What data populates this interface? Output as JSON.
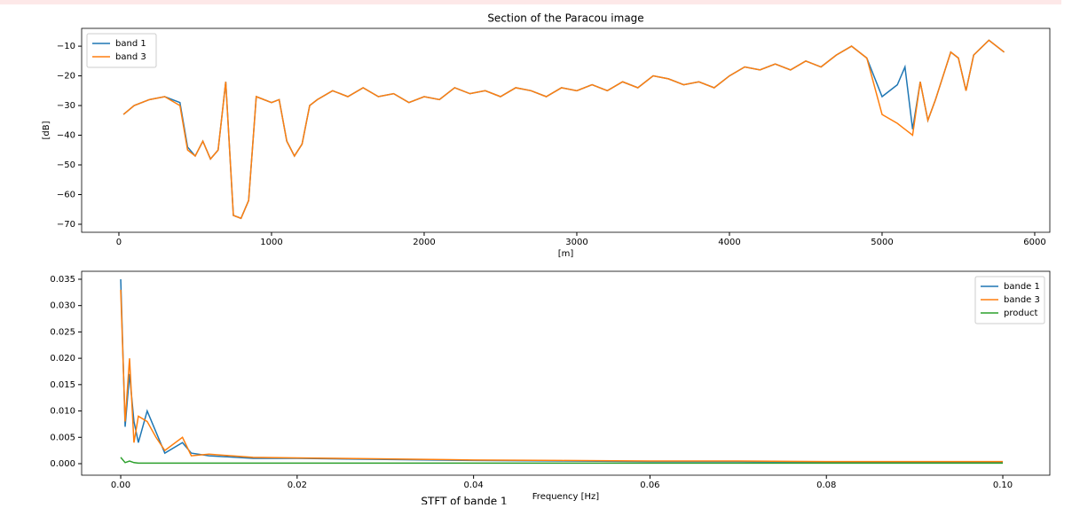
{
  "chart_data": [
    {
      "type": "line",
      "title": "Section of the Paracou image",
      "xlabel": "[m]",
      "ylabel": "[dB]",
      "x": [
        30,
        100,
        200,
        300,
        400,
        450,
        500,
        550,
        600,
        650,
        700,
        750,
        800,
        850,
        900,
        1000,
        1050,
        1100,
        1150,
        1200,
        1250,
        1300,
        1400,
        1500,
        1600,
        1700,
        1800,
        1900,
        2000,
        2100,
        2200,
        2300,
        2400,
        2500,
        2600,
        2700,
        2800,
        2900,
        3000,
        3100,
        3200,
        3300,
        3400,
        3500,
        3600,
        3700,
        3800,
        3900,
        4000,
        4100,
        4200,
        4300,
        4400,
        4500,
        4600,
        4700,
        4800,
        4900,
        5000,
        5100,
        5150,
        5200,
        5250,
        5300,
        5350,
        5400,
        5450,
        5500,
        5550,
        5600,
        5700,
        5800
      ],
      "series": [
        {
          "name": "band 1",
          "color": "#1f77b4",
          "values": [
            -33,
            -30,
            -28,
            -27,
            -29,
            -44,
            -47,
            -42,
            -48,
            -45,
            -22,
            -67,
            -68,
            -62,
            -27,
            -29,
            -28,
            -42,
            -47,
            -43,
            -30,
            -28,
            -25,
            -27,
            -24,
            -27,
            -26,
            -29,
            -27,
            -28,
            -24,
            -26,
            -25,
            -27,
            -24,
            -25,
            -27,
            -24,
            -25,
            -23,
            -25,
            -22,
            -24,
            -20,
            -21,
            -23,
            -22,
            -24,
            -20,
            -17,
            -18,
            -16,
            -18,
            -15,
            -17,
            -13,
            -10,
            -14,
            -27,
            -23,
            -17,
            -38,
            -22,
            -35,
            -28,
            -20,
            -12,
            -14,
            -25,
            -13,
            -8,
            -12
          ]
        },
        {
          "name": "band 3",
          "color": "#ff7f0e",
          "values": [
            -33,
            -30,
            -28,
            -27,
            -30,
            -45,
            -47,
            -42,
            -48,
            -45,
            -22,
            -67,
            -68,
            -62,
            -27,
            -29,
            -28,
            -42,
            -47,
            -43,
            -30,
            -28,
            -25,
            -27,
            -24,
            -27,
            -26,
            -29,
            -27,
            -28,
            -24,
            -26,
            -25,
            -27,
            -24,
            -25,
            -27,
            -24,
            -25,
            -23,
            -25,
            -22,
            -24,
            -20,
            -21,
            -23,
            -22,
            -24,
            -20,
            -17,
            -18,
            -16,
            -18,
            -15,
            -17,
            -13,
            -10,
            -14,
            -33,
            -36,
            -38,
            -40,
            -22,
            -35,
            -28,
            -20,
            -12,
            -14,
            -25,
            -13,
            -8,
            -12
          ]
        }
      ],
      "xlim": [
        -244,
        6099
      ],
      "xticks": [
        0,
        1000,
        2000,
        3000,
        4000,
        5000,
        6000
      ],
      "ylim": [
        -72.7,
        -4.0
      ],
      "yticks": [
        {
          "value": -70,
          "label": "−70"
        },
        {
          "value": -60,
          "label": "−60"
        },
        {
          "value": -50,
          "label": "−50"
        },
        {
          "value": -40,
          "label": "−40"
        },
        {
          "value": -30,
          "label": "−30"
        },
        {
          "value": -20,
          "label": "−20"
        },
        {
          "value": -10,
          "label": "−10"
        }
      ],
      "grid": false,
      "legend": "upper-left"
    },
    {
      "type": "line",
      "xlabel": "Frequency [Hz]",
      "x": [
        0,
        0.0005,
        0.001,
        0.0015,
        0.002,
        0.003,
        0.004,
        0.005,
        0.007,
        0.008,
        0.01,
        0.015,
        0.02,
        0.03,
        0.04,
        0.05,
        0.06,
        0.07,
        0.08,
        0.09,
        0.1
      ],
      "series": [
        {
          "name": "bande 1",
          "color": "#1f77b4",
          "values": [
            0.035,
            0.007,
            0.017,
            0.008,
            0.004,
            0.01,
            0.006,
            0.002,
            0.004,
            0.002,
            0.0015,
            0.001,
            0.001,
            0.0008,
            0.0006,
            0.0005,
            0.0004,
            0.0004,
            0.0003,
            0.0003,
            0.0003
          ]
        },
        {
          "name": "bande 3",
          "color": "#ff7f0e",
          "values": [
            0.033,
            0.008,
            0.02,
            0.004,
            0.009,
            0.008,
            0.005,
            0.0025,
            0.005,
            0.0015,
            0.0018,
            0.0012,
            0.0011,
            0.0009,
            0.0007,
            0.0006,
            0.0005,
            0.0005,
            0.0004,
            0.0004,
            0.0004
          ]
        },
        {
          "name": "product",
          "color": "#2ca02c",
          "values": [
            0.0012,
            0.0002,
            0.0005,
            0.0002,
            0.0001,
            0.0001,
            0.0001,
            0.0001,
            0.0001,
            0.0001,
            0.0001,
            0.0001,
            0.0001,
            0.0001,
            0.0001,
            0.0001,
            0.0001,
            0.0001,
            0.0001,
            0.0001,
            0.0001
          ]
        }
      ],
      "xlim": [
        -0.00443,
        0.10533
      ],
      "xticks": [
        {
          "value": 0,
          "label": "0.00"
        },
        {
          "value": 0.02,
          "label": "0.02"
        },
        {
          "value": 0.04,
          "label": "0.04"
        },
        {
          "value": 0.06,
          "label": "0.06"
        },
        {
          "value": 0.08,
          "label": "0.08"
        },
        {
          "value": 0.1,
          "label": "0.10"
        }
      ],
      "ylim": [
        -0.00219,
        0.03651
      ],
      "yticks": [
        {
          "value": 0,
          "label": "0.000"
        },
        {
          "value": 0.005,
          "label": "0.005"
        },
        {
          "value": 0.01,
          "label": "0.010"
        },
        {
          "value": 0.015,
          "label": "0.015"
        },
        {
          "value": 0.02,
          "label": "0.020"
        },
        {
          "value": 0.025,
          "label": "0.025"
        },
        {
          "value": 0.03,
          "label": "0.030"
        },
        {
          "value": 0.035,
          "label": "0.035"
        }
      ],
      "grid": false,
      "legend": "upper-right"
    }
  ],
  "next_output": {
    "title": "STFT of bande 1"
  }
}
